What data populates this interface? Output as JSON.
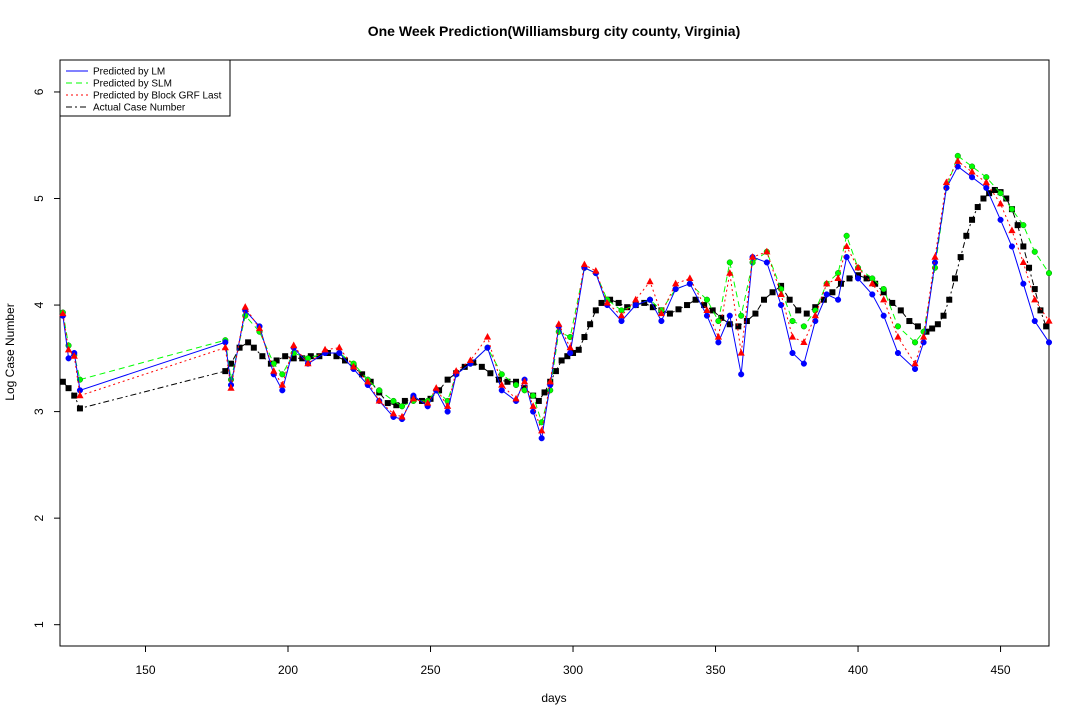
{
  "chart_data": {
    "type": "line",
    "title": "One Week Prediction(Williamsburg city county, Virginia)",
    "xlabel": "days",
    "ylabel": "Log Case Number",
    "xlim": [
      120,
      467
    ],
    "ylim": [
      0.8,
      6.3
    ],
    "xticks": [
      150,
      200,
      250,
      300,
      350,
      400,
      450
    ],
    "yticks": [
      1,
      2,
      3,
      4,
      5,
      6
    ],
    "xtick_labels": [
      "150",
      "200",
      "250",
      "300",
      "350",
      "400",
      "450"
    ],
    "ytick_labels": [
      "1",
      "2",
      "3",
      "4",
      "5",
      "6"
    ],
    "legend_position": "top-left",
    "series": [
      {
        "name": "Predicted by LM",
        "color": "#0000ff",
        "dash": "",
        "marker": "circle",
        "x": [
          121,
          123,
          125,
          127,
          178,
          180,
          185,
          190,
          195,
          198,
          202,
          207,
          213,
          218,
          223,
          228,
          232,
          237,
          240,
          244,
          249,
          252,
          256,
          259,
          264,
          270,
          275,
          280,
          283,
          286,
          289,
          292,
          295,
          299,
          304,
          308,
          312,
          317,
          322,
          327,
          331,
          336,
          341,
          347,
          351,
          355,
          359,
          363,
          368,
          373,
          377,
          381,
          385,
          389,
          393,
          396,
          400,
          405,
          409,
          414,
          420,
          423,
          427,
          431,
          435,
          440,
          445,
          450,
          454,
          458,
          462,
          467
        ],
        "y": [
          3.9,
          3.5,
          3.55,
          3.2,
          3.65,
          3.25,
          3.95,
          3.8,
          3.35,
          3.2,
          3.6,
          3.45,
          3.55,
          3.55,
          3.4,
          3.25,
          3.1,
          2.95,
          2.93,
          3.15,
          3.05,
          3.2,
          3.0,
          3.35,
          3.45,
          3.6,
          3.2,
          3.1,
          3.3,
          3.0,
          2.75,
          3.25,
          3.8,
          3.55,
          4.35,
          4.3,
          4.0,
          3.85,
          4.0,
          4.05,
          3.85,
          4.15,
          4.2,
          3.9,
          3.65,
          3.9,
          3.35,
          4.45,
          4.4,
          4.0,
          3.55,
          3.45,
          3.85,
          4.1,
          4.05,
          4.45,
          4.25,
          4.1,
          3.9,
          3.55,
          3.4,
          3.65,
          4.4,
          5.1,
          5.3,
          5.2,
          5.1,
          4.8,
          4.55,
          4.2,
          3.85,
          3.65
        ]
      },
      {
        "name": "Predicted by SLM",
        "color": "#00ff00",
        "dash": "6,4",
        "marker": "circle",
        "x": [
          121,
          123,
          125,
          127,
          178,
          180,
          185,
          190,
          195,
          198,
          202,
          207,
          213,
          218,
          223,
          228,
          232,
          237,
          240,
          244,
          249,
          252,
          256,
          259,
          264,
          270,
          275,
          280,
          283,
          286,
          289,
          292,
          295,
          299,
          304,
          308,
          312,
          317,
          322,
          327,
          331,
          336,
          341,
          347,
          351,
          355,
          359,
          363,
          368,
          373,
          377,
          381,
          385,
          389,
          393,
          396,
          400,
          405,
          409,
          414,
          420,
          423,
          427,
          431,
          435,
          440,
          445,
          450,
          454,
          458,
          462,
          467
        ],
        "y": [
          3.93,
          3.62,
          3.53,
          3.3,
          3.67,
          3.3,
          3.9,
          3.75,
          3.45,
          3.35,
          3.55,
          3.5,
          3.55,
          3.55,
          3.45,
          3.3,
          3.2,
          3.1,
          3.05,
          3.1,
          3.1,
          3.2,
          3.1,
          3.35,
          3.45,
          3.6,
          3.35,
          3.25,
          3.2,
          3.15,
          2.9,
          3.2,
          3.75,
          3.7,
          4.35,
          4.3,
          4.05,
          3.95,
          4.0,
          4.05,
          3.95,
          4.15,
          4.2,
          4.05,
          3.85,
          4.4,
          3.9,
          4.4,
          4.5,
          4.15,
          3.85,
          3.8,
          3.95,
          4.2,
          4.3,
          4.65,
          4.35,
          4.25,
          4.15,
          3.8,
          3.65,
          3.75,
          4.35,
          5.1,
          5.4,
          5.3,
          5.2,
          5.05,
          4.9,
          4.75,
          4.5,
          4.3
        ]
      },
      {
        "name": "Predicted by Block GRF Last",
        "color": "#ff0000",
        "dash": "2,3",
        "marker": "triangle",
        "x": [
          121,
          123,
          125,
          127,
          178,
          180,
          185,
          190,
          195,
          198,
          202,
          207,
          213,
          218,
          223,
          228,
          232,
          237,
          240,
          244,
          249,
          252,
          256,
          259,
          264,
          270,
          275,
          280,
          283,
          286,
          289,
          292,
          295,
          299,
          304,
          308,
          312,
          317,
          322,
          327,
          331,
          336,
          341,
          347,
          351,
          355,
          359,
          363,
          368,
          373,
          377,
          381,
          385,
          389,
          393,
          396,
          400,
          405,
          409,
          414,
          420,
          423,
          427,
          431,
          435,
          440,
          445,
          450,
          454,
          458,
          462,
          467
        ],
        "y": [
          3.92,
          3.58,
          3.52,
          3.15,
          3.6,
          3.22,
          3.98,
          3.78,
          3.38,
          3.25,
          3.62,
          3.45,
          3.58,
          3.6,
          3.42,
          3.28,
          3.1,
          2.98,
          2.95,
          3.12,
          3.08,
          3.22,
          3.05,
          3.38,
          3.48,
          3.7,
          3.25,
          3.12,
          3.28,
          3.05,
          2.82,
          3.28,
          3.82,
          3.6,
          4.38,
          4.32,
          4.02,
          3.9,
          4.05,
          4.22,
          3.92,
          4.2,
          4.25,
          3.95,
          3.7,
          4.3,
          3.55,
          4.45,
          4.5,
          4.1,
          3.7,
          3.65,
          3.9,
          4.2,
          4.25,
          4.55,
          4.35,
          4.2,
          4.05,
          3.7,
          3.45,
          3.7,
          4.45,
          5.15,
          5.35,
          5.25,
          5.15,
          4.95,
          4.7,
          4.4,
          4.05,
          3.85
        ]
      },
      {
        "name": "Actual Case Number",
        "color": "#000000",
        "dash": "6,3,2,3",
        "marker": "square",
        "x": [
          121,
          123,
          125,
          127,
          178,
          180,
          183,
          186,
          188,
          191,
          194,
          196,
          199,
          202,
          205,
          208,
          211,
          214,
          217,
          220,
          223,
          226,
          229,
          232,
          235,
          238,
          241,
          244,
          247,
          250,
          253,
          256,
          259,
          262,
          265,
          268,
          271,
          274,
          277,
          280,
          283,
          286,
          288,
          290,
          292,
          294,
          296,
          298,
          300,
          302,
          304,
          306,
          308,
          310,
          313,
          316,
          319,
          322,
          325,
          328,
          331,
          334,
          337,
          340,
          343,
          346,
          349,
          352,
          355,
          358,
          361,
          364,
          367,
          370,
          373,
          376,
          379,
          382,
          385,
          388,
          391,
          394,
          397,
          400,
          403,
          406,
          409,
          412,
          415,
          418,
          421,
          424,
          426,
          428,
          430,
          432,
          434,
          436,
          438,
          440,
          442,
          444,
          446,
          448,
          450,
          452,
          454,
          456,
          458,
          460,
          462,
          464,
          466
        ],
        "y": [
          3.28,
          3.22,
          3.15,
          3.03,
          3.38,
          3.45,
          3.6,
          3.65,
          3.6,
          3.52,
          3.45,
          3.48,
          3.52,
          3.5,
          3.5,
          3.52,
          3.52,
          3.55,
          3.52,
          3.48,
          3.42,
          3.35,
          3.28,
          3.18,
          3.08,
          3.06,
          3.1,
          3.12,
          3.1,
          3.12,
          3.2,
          3.3,
          3.36,
          3.42,
          3.46,
          3.42,
          3.36,
          3.3,
          3.28,
          3.28,
          3.22,
          3.15,
          3.1,
          3.18,
          3.28,
          3.38,
          3.48,
          3.52,
          3.55,
          3.58,
          3.7,
          3.82,
          3.95,
          4.02,
          4.05,
          4.02,
          3.98,
          4.0,
          4.02,
          3.98,
          3.95,
          3.92,
          3.96,
          4.0,
          4.05,
          4.0,
          3.95,
          3.88,
          3.82,
          3.8,
          3.85,
          3.92,
          4.05,
          4.12,
          4.18,
          4.05,
          3.95,
          3.92,
          3.98,
          4.05,
          4.12,
          4.2,
          4.25,
          4.28,
          4.25,
          4.2,
          4.12,
          4.02,
          3.95,
          3.85,
          3.8,
          3.75,
          3.78,
          3.82,
          3.9,
          4.05,
          4.25,
          4.45,
          4.65,
          4.8,
          4.92,
          5.0,
          5.05,
          5.08,
          5.06,
          5.0,
          4.9,
          4.75,
          4.55,
          4.35,
          4.15,
          3.95,
          3.8
        ]
      }
    ]
  }
}
